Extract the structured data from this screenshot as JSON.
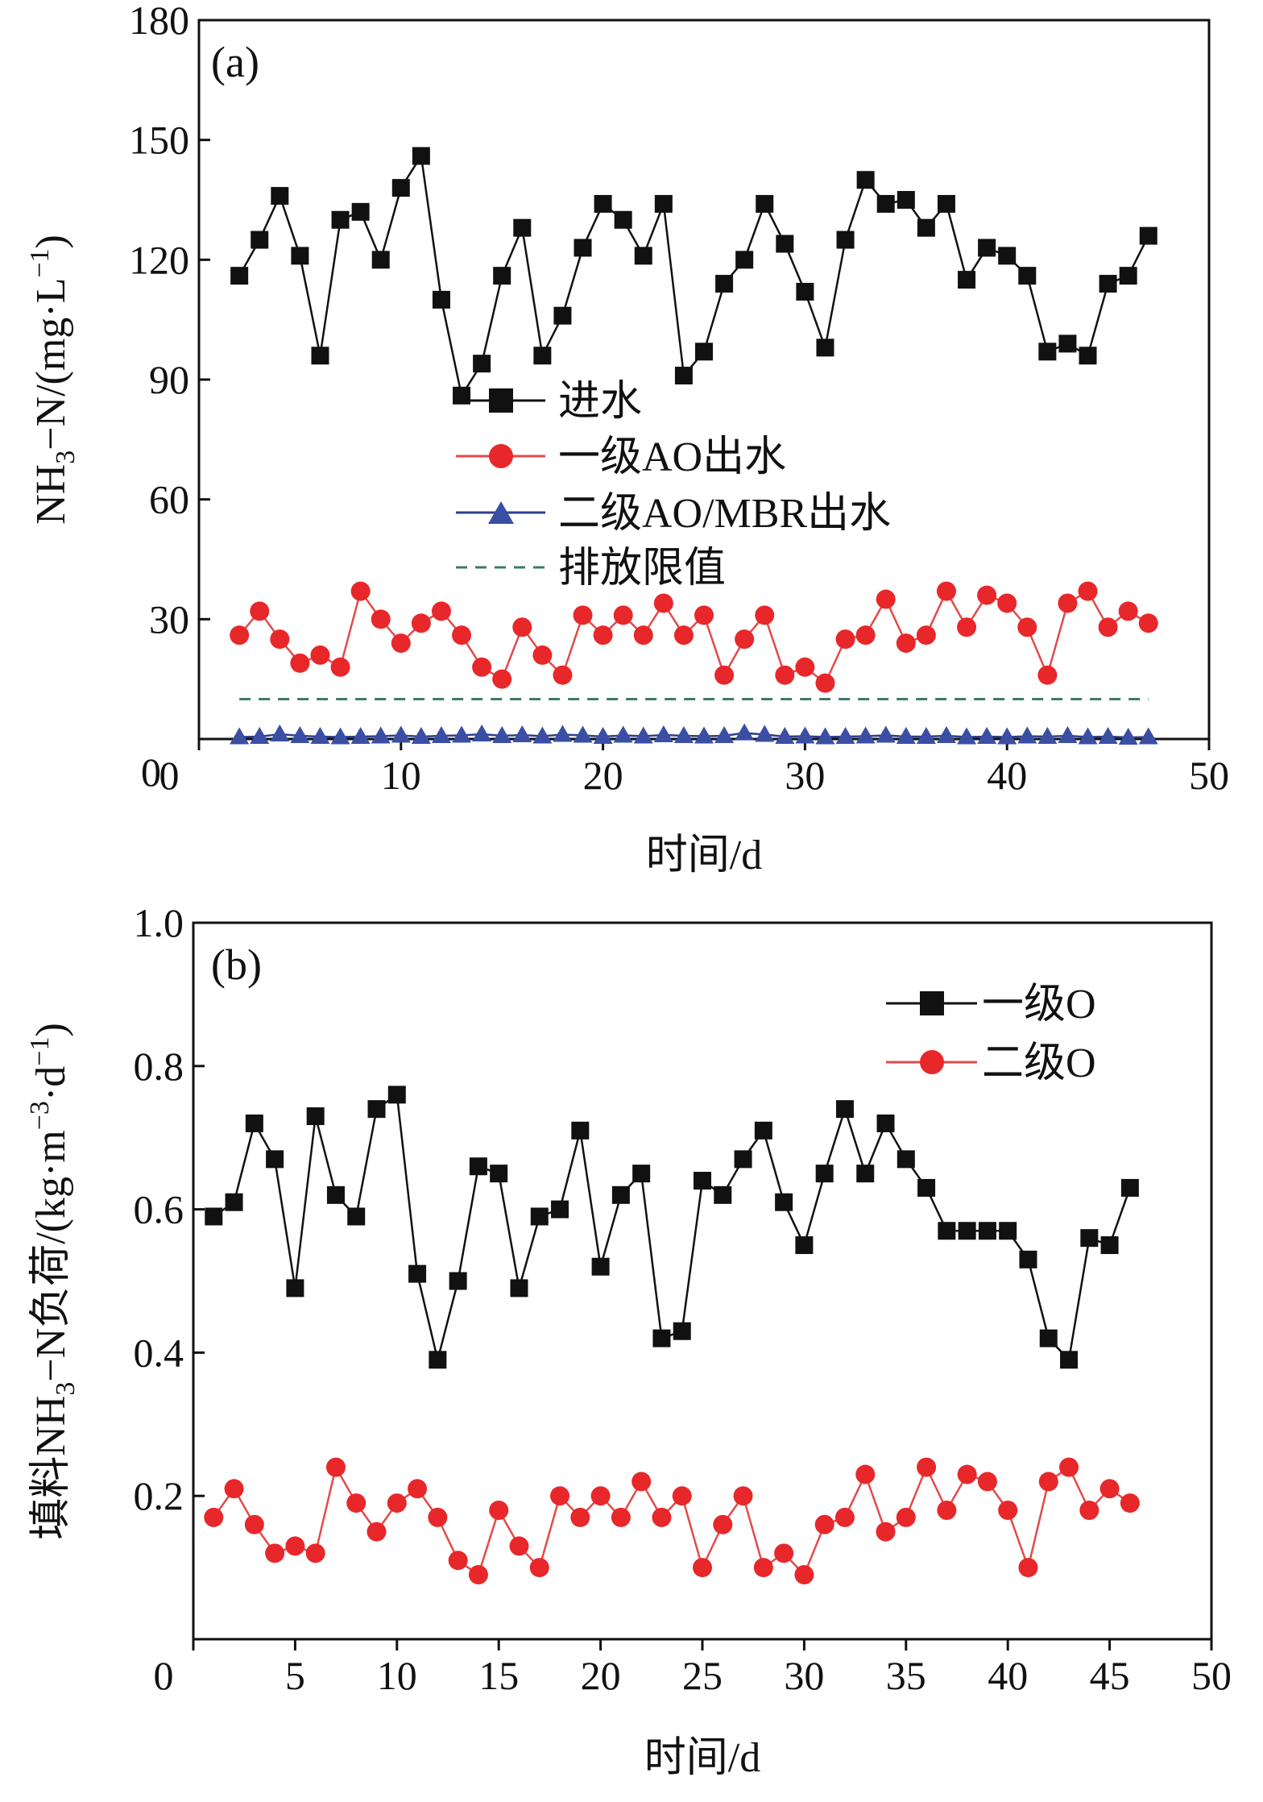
{
  "colors": {
    "black": "#111111",
    "red": "#e8272a",
    "red_line": "#e34a4a",
    "blue": "#2e3f8f",
    "blue_fill": "#3a4fa3",
    "green_dash": "#3e7a6c"
  },
  "chart_data": [
    {
      "type": "line",
      "panel_label": "(a)",
      "xlabel": "时间/d",
      "ylabel": "NH3−N/(mg·L−1)",
      "xlim": [
        0,
        50
      ],
      "ylim": [
        0,
        180
      ],
      "x_ticks": [
        0,
        10,
        20,
        30,
        40,
        50
      ],
      "y_ticks": [
        0,
        30,
        60,
        90,
        120,
        150,
        180
      ],
      "x": [
        2,
        3,
        4,
        5,
        6,
        7,
        8,
        9,
        10,
        11,
        12,
        13,
        14,
        15,
        16,
        17,
        18,
        19,
        20,
        21,
        22,
        23,
        24,
        25,
        26,
        27,
        28,
        29,
        30,
        31,
        32,
        33,
        34,
        35,
        36,
        37,
        38,
        39,
        40,
        41,
        42,
        43,
        44,
        45,
        46,
        47
      ],
      "legend": {
        "labels": [
          "进水",
          "一级AO出水",
          "二级AO/MBR出水",
          "排放限值"
        ]
      },
      "series": [
        {
          "name": "进水",
          "marker": "square",
          "color": "#111111",
          "values": [
            116,
            125,
            136,
            121,
            96,
            130,
            132,
            120,
            138,
            146,
            110,
            86,
            94,
            116,
            128,
            96,
            106,
            123,
            134,
            130,
            121,
            134,
            91,
            97,
            114,
            120,
            134,
            124,
            112,
            98,
            125,
            140,
            134,
            135,
            128,
            134,
            115,
            123,
            121,
            116,
            97,
            99,
            96,
            114,
            116,
            126
          ]
        },
        {
          "name": "一级AO出水",
          "marker": "circle",
          "color": "#e8272a",
          "values": [
            26,
            32,
            25,
            19,
            21,
            18,
            37,
            30,
            24,
            29,
            32,
            26,
            18,
            15,
            28,
            21,
            16,
            31,
            26,
            31,
            26,
            34,
            26,
            31,
            16,
            25,
            31,
            16,
            18,
            14,
            25,
            26,
            35,
            24,
            26,
            37,
            28,
            36,
            34,
            28,
            16,
            34,
            37,
            28,
            32,
            29
          ]
        },
        {
          "name": "二级AO/MBR出水",
          "marker": "triangle",
          "color": "#2e3f8f",
          "values": [
            0.5,
            0.6,
            1.2,
            0.8,
            0.6,
            0.5,
            0.6,
            0.7,
            0.9,
            0.6,
            0.8,
            0.9,
            1.2,
            0.8,
            1.0,
            0.7,
            1.1,
            0.9,
            0.6,
            0.9,
            0.7,
            1.0,
            0.8,
            0.7,
            0.8,
            1.5,
            1.1,
            0.6,
            0.7,
            0.5,
            0.6,
            0.7,
            0.9,
            0.6,
            0.6,
            0.8,
            0.5,
            0.6,
            0.5,
            0.7,
            0.6,
            0.8,
            0.5,
            0.6,
            0.4,
            0.5
          ]
        },
        {
          "name": "排放限值",
          "style": "dashed",
          "color": "#3e7a6c",
          "x": [
            2,
            47
          ],
          "values": [
            10,
            10
          ]
        }
      ]
    },
    {
      "type": "line",
      "panel_label": "(b)",
      "xlabel": "时间/d",
      "ylabel": "填料NH3−N负荷/(kg·m−3·d−1)",
      "xlim": [
        0,
        50
      ],
      "ylim": [
        0,
        1.0
      ],
      "x_ticks": [
        0,
        5,
        10,
        15,
        20,
        25,
        30,
        35,
        40,
        45,
        50
      ],
      "y_ticks": [
        0.2,
        0.4,
        0.6,
        0.8,
        1.0
      ],
      "y_tick_labels": [
        "0.2",
        "0.4",
        "0.6",
        "0.8",
        "1.0"
      ],
      "x": [
        1,
        2,
        3,
        4,
        5,
        6,
        7,
        8,
        9,
        10,
        11,
        12,
        13,
        14,
        15,
        16,
        17,
        18,
        19,
        20,
        21,
        22,
        23,
        24,
        25,
        26,
        27,
        28,
        29,
        30,
        31,
        32,
        33,
        34,
        35,
        36,
        37,
        38,
        39,
        40,
        41,
        42,
        43,
        44,
        45,
        46
      ],
      "legend": {
        "labels": [
          "一级O",
          "二级O"
        ]
      },
      "series": [
        {
          "name": "一级O",
          "marker": "square",
          "color": "#111111",
          "values": [
            0.59,
            0.61,
            0.72,
            0.67,
            0.49,
            0.73,
            0.62,
            0.59,
            0.74,
            0.76,
            0.51,
            0.39,
            0.5,
            0.66,
            0.65,
            0.49,
            0.59,
            0.6,
            0.71,
            0.52,
            0.62,
            0.65,
            0.42,
            0.43,
            0.64,
            0.62,
            0.67,
            0.71,
            0.61,
            0.55,
            0.65,
            0.74,
            0.65,
            0.72,
            0.67,
            0.63,
            0.57,
            0.57,
            0.57,
            0.57,
            0.53,
            0.42,
            0.39,
            0.56,
            0.55,
            0.63
          ]
        },
        {
          "name": "二级O",
          "marker": "circle",
          "color": "#e8272a",
          "values": [
            0.17,
            0.21,
            0.16,
            0.12,
            0.13,
            0.12,
            0.24,
            0.19,
            0.15,
            0.19,
            0.21,
            0.17,
            0.11,
            0.09,
            0.18,
            0.13,
            0.1,
            0.2,
            0.17,
            0.2,
            0.17,
            0.22,
            0.17,
            0.2,
            0.1,
            0.16,
            0.2,
            0.1,
            0.12,
            0.09,
            0.16,
            0.17,
            0.23,
            0.15,
            0.17,
            0.24,
            0.18,
            0.23,
            0.22,
            0.18,
            0.1,
            0.22,
            0.24,
            0.18,
            0.21,
            0.19
          ]
        }
      ]
    }
  ]
}
